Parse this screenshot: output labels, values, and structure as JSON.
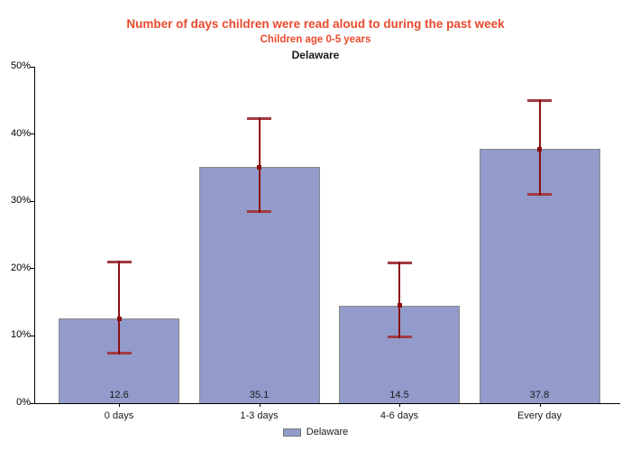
{
  "header": {
    "title": "Number of days children were read aloud to during the past week",
    "subtitle": "Children age 0-5 years",
    "region": "Delaware"
  },
  "chart_data": {
    "type": "bar",
    "title": "Number of days children were read aloud to during the past week",
    "subtitle": "Children age 0-5 years",
    "region_label": "Delaware",
    "categories": [
      "0 days",
      "1-3 days",
      "4-6 days",
      "Every day"
    ],
    "series": [
      {
        "name": "Delaware",
        "values": [
          12.6,
          35.1,
          14.5,
          37.8
        ]
      }
    ],
    "value_labels": [
      "12.6",
      "35.1",
      "14.5",
      "37.8"
    ],
    "error_bars": [
      {
        "low": 7.2,
        "high": 21.2
      },
      {
        "low": 28.3,
        "high": 42.5
      },
      {
        "low": 9.7,
        "high": 21.0
      },
      {
        "low": 30.8,
        "high": 45.2
      }
    ],
    "xlabel": "",
    "ylabel": "",
    "ylim": [
      0,
      50
    ],
    "ytick_labels": [
      "0%",
      "10%",
      "20%",
      "30%",
      "40%",
      "50%"
    ],
    "ytick_values": [
      0,
      10,
      20,
      30,
      40,
      50
    ],
    "grid": false,
    "legend": {
      "position": "bottom",
      "entries": [
        {
          "label": "Delaware",
          "swatch_color": "#929BCA"
        }
      ]
    },
    "colors": {
      "title_color": "#EA4A2D",
      "bar_fill": "#929BCA",
      "bar_border": "#8a8a8a",
      "error_line": "#8b0e0e",
      "error_cap": "#a23a42",
      "axis_color": "#000000",
      "label_color": "#1a1a1a"
    }
  }
}
